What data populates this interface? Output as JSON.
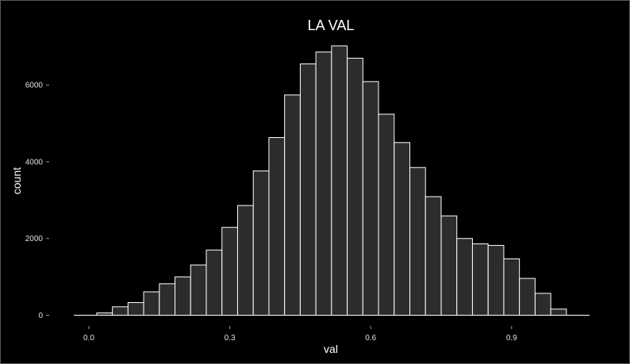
{
  "colors": {
    "background": "#000000",
    "bar_fill": "#2c2c2c",
    "bar_stroke": "#ffffff",
    "text": "#ffffff"
  },
  "chart_data": {
    "type": "bar",
    "subtype": "histogram",
    "title": "LA VAL",
    "xlabel": "val",
    "ylabel": "count",
    "bin_width": 0.0333,
    "bin_start": -0.0167,
    "bin_centers": [
      0.0,
      0.0333,
      0.0667,
      0.1,
      0.1333,
      0.1667,
      0.2,
      0.2333,
      0.2667,
      0.3,
      0.3333,
      0.3667,
      0.4,
      0.4333,
      0.4667,
      0.5,
      0.5333,
      0.5667,
      0.6,
      0.6333,
      0.6667,
      0.7,
      0.7333,
      0.7667,
      0.8,
      0.8333,
      0.8667,
      0.9,
      0.9333,
      0.9667,
      1.0
    ],
    "values": [
      0,
      60,
      220,
      330,
      610,
      820,
      1000,
      1310,
      1700,
      2290,
      2860,
      3760,
      4630,
      5740,
      6550,
      6860,
      7020,
      6700,
      6090,
      5240,
      4500,
      3850,
      3090,
      2590,
      2000,
      1860,
      1820,
      1470,
      960,
      570,
      160
    ],
    "xlim": [
      -0.0167,
      1.0167
    ],
    "ylim": [
      0,
      7020
    ],
    "x_ticks": [
      0.0,
      0.3,
      0.6,
      0.9
    ],
    "x_tick_labels": [
      "0.0",
      "0.3",
      "0.6",
      "0.9"
    ],
    "y_ticks": [
      0,
      2000,
      4000,
      6000
    ],
    "y_tick_labels": [
      "0",
      "2000",
      "4000",
      "6000"
    ],
    "grid": false,
    "legend": "none"
  }
}
